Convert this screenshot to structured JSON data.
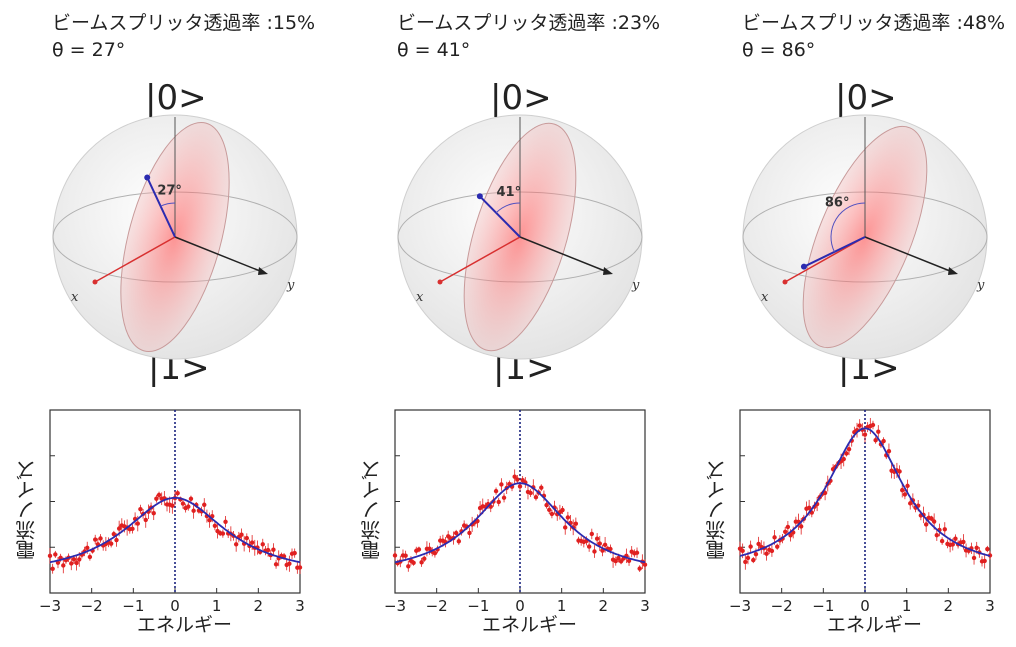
{
  "panels": [
    {
      "caption_line1": "ビームスプリッタ透過率 :15%",
      "caption_line2": "θ = 27°",
      "angle_label": "27°",
      "theta_deg": 27
    },
    {
      "caption_line1": "ビームスプリッタ透過率 :23%",
      "caption_line2": "θ = 41°",
      "angle_label": "41°",
      "theta_deg": 41
    },
    {
      "caption_line1": "ビームスプリッタ透過率 :48%",
      "caption_line2": "θ = 86°",
      "angle_label": "86°",
      "theta_deg": 86
    }
  ],
  "sphere_labels": {
    "top": "|0>",
    "bottom": "|1>",
    "x_axis": "x",
    "y_axis": "y"
  },
  "chart_data": [
    {
      "type": "scatter",
      "title": "",
      "xlabel": "エネルギー",
      "ylabel": "電流ノイズ",
      "xlim": [
        -3,
        3
      ],
      "ylim": [
        0,
        1
      ],
      "xticks": [
        "−3",
        "−2",
        "−1",
        "0",
        "1",
        "2",
        "3"
      ],
      "peak": 0.52,
      "base": 0.08,
      "width": 1.5,
      "colors": {
        "data": "#e02020",
        "fit": "#2b2bb0",
        "zero": "#1a237e"
      }
    },
    {
      "type": "scatter",
      "title": "",
      "xlabel": "エネルギー",
      "ylabel": "電流ノイズ",
      "xlim": [
        -3,
        3
      ],
      "ylim": [
        0,
        1
      ],
      "xticks": [
        "−3",
        "−2",
        "−1",
        "0",
        "1",
        "2",
        "3"
      ],
      "peak": 0.6,
      "base": 0.08,
      "width": 1.35,
      "colors": {
        "data": "#e02020",
        "fit": "#2b2bb0",
        "zero": "#1a237e"
      }
    },
    {
      "type": "scatter",
      "title": "",
      "xlabel": "エネルギー",
      "ylabel": "電流ノイズ",
      "xlim": [
        -3,
        3
      ],
      "ylim": [
        0,
        1
      ],
      "xticks": [
        "−3",
        "−2",
        "−1",
        "0",
        "1",
        "2",
        "3"
      ],
      "peak": 0.9,
      "base": 0.1,
      "width": 1.15,
      "colors": {
        "data": "#e02020",
        "fit": "#2b2bb0",
        "zero": "#1a237e"
      }
    }
  ]
}
